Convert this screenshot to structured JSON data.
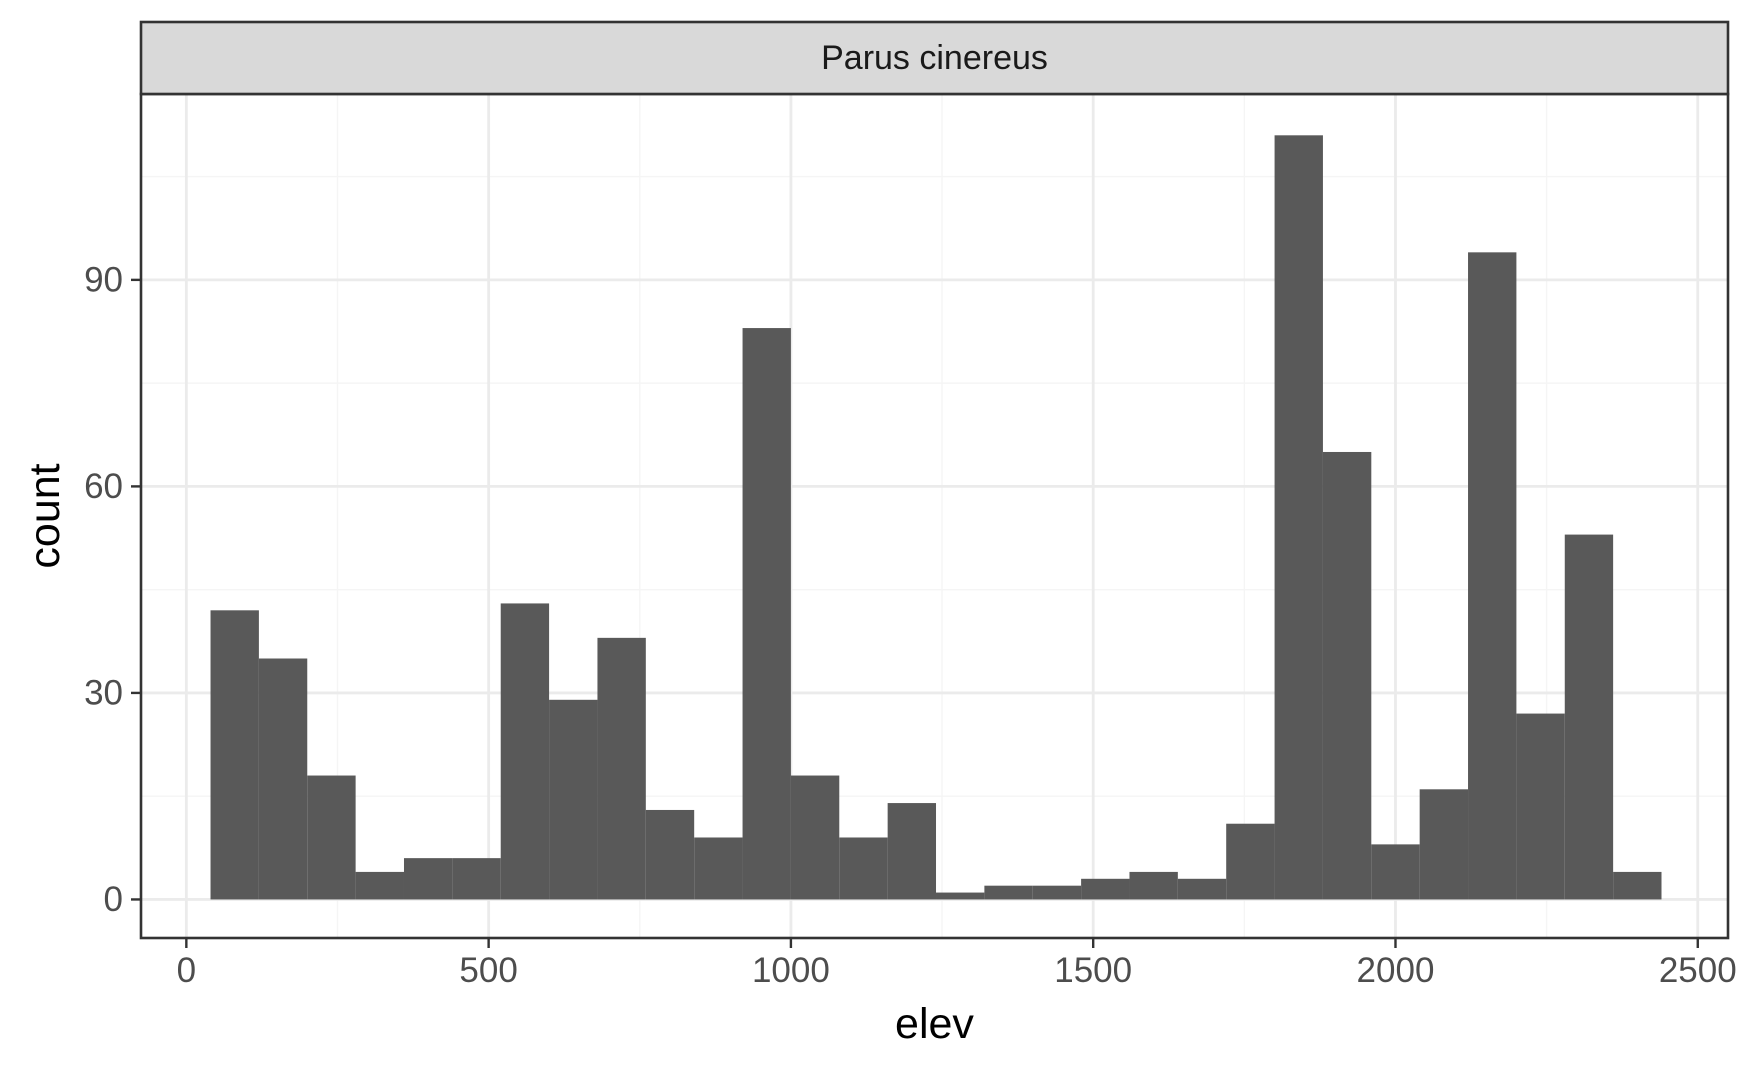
{
  "chart_data": {
    "type": "bar",
    "facet_label": "Parus cinereus",
    "xlabel": "elev",
    "ylabel": "count",
    "xlim": [
      -75,
      2550
    ],
    "ylim": [
      -5.6,
      117
    ],
    "x_ticks": [
      0,
      500,
      1000,
      1500,
      2000,
      2500
    ],
    "y_ticks": [
      0,
      30,
      60,
      90
    ],
    "bin_width": 80,
    "bins": [
      {
        "x0": 40,
        "x1": 120,
        "count": 42
      },
      {
        "x0": 120,
        "x1": 200,
        "count": 35
      },
      {
        "x0": 200,
        "x1": 280,
        "count": 18
      },
      {
        "x0": 280,
        "x1": 360,
        "count": 4
      },
      {
        "x0": 360,
        "x1": 440,
        "count": 6
      },
      {
        "x0": 440,
        "x1": 520,
        "count": 6
      },
      {
        "x0": 520,
        "x1": 600,
        "count": 43
      },
      {
        "x0": 600,
        "x1": 680,
        "count": 29
      },
      {
        "x0": 680,
        "x1": 760,
        "count": 38
      },
      {
        "x0": 760,
        "x1": 840,
        "count": 13
      },
      {
        "x0": 840,
        "x1": 920,
        "count": 9
      },
      {
        "x0": 920,
        "x1": 1000,
        "count": 83
      },
      {
        "x0": 1000,
        "x1": 1080,
        "count": 18
      },
      {
        "x0": 1080,
        "x1": 1160,
        "count": 9
      },
      {
        "x0": 1160,
        "x1": 1240,
        "count": 14
      },
      {
        "x0": 1240,
        "x1": 1320,
        "count": 1
      },
      {
        "x0": 1320,
        "x1": 1400,
        "count": 2
      },
      {
        "x0": 1400,
        "x1": 1480,
        "count": 2
      },
      {
        "x0": 1480,
        "x1": 1560,
        "count": 3
      },
      {
        "x0": 1560,
        "x1": 1640,
        "count": 4
      },
      {
        "x0": 1640,
        "x1": 1720,
        "count": 3
      },
      {
        "x0": 1720,
        "x1": 1800,
        "count": 11
      },
      {
        "x0": 1800,
        "x1": 1880,
        "count": 111
      },
      {
        "x0": 1880,
        "x1": 1960,
        "count": 65
      },
      {
        "x0": 1960,
        "x1": 2040,
        "count": 8
      },
      {
        "x0": 2040,
        "x1": 2120,
        "count": 16
      },
      {
        "x0": 2120,
        "x1": 2200,
        "count": 94
      },
      {
        "x0": 2200,
        "x1": 2280,
        "count": 27
      },
      {
        "x0": 2280,
        "x1": 2360,
        "count": 53
      },
      {
        "x0": 2360,
        "x1": 2440,
        "count": 4
      }
    ],
    "colors": {
      "bar": "#595959",
      "strip_fill": "#d9d9d9",
      "frame": "#333333",
      "grid_major": "#ebebeb",
      "grid_minor": "#f5f5f5",
      "tick_text": "#4d4d4d",
      "axis_title": "#000000"
    },
    "grid": true,
    "legend": "none"
  }
}
